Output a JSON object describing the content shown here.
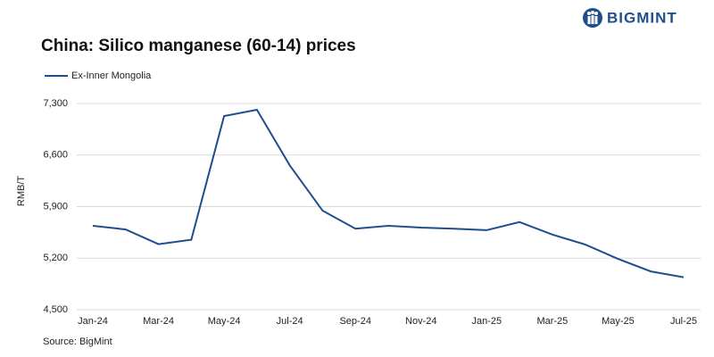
{
  "header": {
    "logo": "BIGMINT"
  },
  "chart_data": {
    "type": "line",
    "title": "China: Silico manganese (60-14) prices",
    "y_label": "RMB/T",
    "source": "Source: BigMint",
    "categories": [
      "Jan-24",
      null,
      "Mar-24",
      null,
      "May-24",
      null,
      "Jul-24",
      null,
      "Sep-24",
      null,
      "Nov-24",
      null,
      "Jan-25",
      null,
      "Mar-25",
      null,
      "May-25",
      null,
      "Jul-25"
    ],
    "series": [
      {
        "name": "Ex-Inner Mongolia",
        "color": "#1f4e8c",
        "values": [
          5640,
          5590,
          5390,
          5450,
          7130,
          7215,
          6460,
          5845,
          5600,
          5640,
          5615,
          5600,
          5580,
          5690,
          5520,
          5385,
          5190,
          5020,
          4940
        ]
      }
    ],
    "ylim": [
      4500,
      7300
    ],
    "yticks": [
      {
        "value": 4500,
        "label": "4,500"
      },
      {
        "value": 5200,
        "label": "5,200"
      },
      {
        "value": 5900,
        "label": "5,900"
      },
      {
        "value": 6600,
        "label": "6,600"
      },
      {
        "value": 7300,
        "label": "7,300"
      }
    ],
    "grid": true
  }
}
